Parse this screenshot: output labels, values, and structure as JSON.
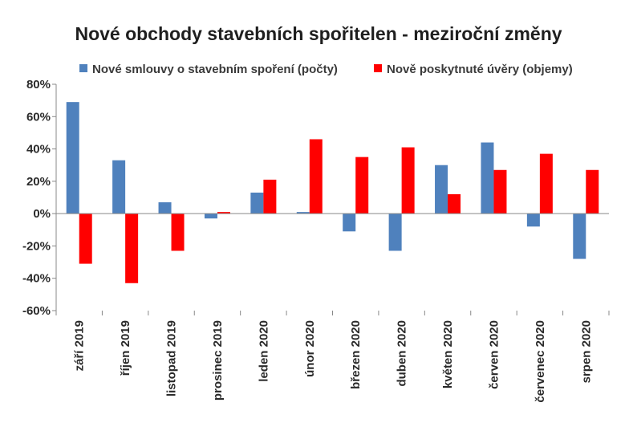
{
  "chart_data": {
    "type": "bar",
    "title": "Nové obchody stavebních spořitelen - meziroční změny",
    "categories": [
      "září 2019",
      "říjen 2019",
      "listopad 2019",
      "prosinec 2019",
      "leden 2020",
      "únor 2020",
      "březen 2020",
      "duben 2020",
      "květen 2020",
      "červen 2020",
      "červenec 2020",
      "srpen 2020"
    ],
    "series": [
      {
        "name": "Nové smlouvy o stavebním spoření (počty)",
        "color": "#4f81bd",
        "values": [
          69,
          33,
          7,
          -3,
          13,
          1,
          -11,
          -23,
          30,
          44,
          -8,
          -28
        ]
      },
      {
        "name": "Nově poskytnuté úvěry (objemy)",
        "color": "#ff0000",
        "values": [
          -31,
          -43,
          -23,
          1,
          21,
          46,
          35,
          41,
          12,
          27,
          37,
          27
        ]
      }
    ],
    "ylim": [
      -60,
      80
    ],
    "yticks": [
      80,
      60,
      40,
      20,
      0,
      -20,
      -40,
      -60
    ],
    "ytick_suffix": "%",
    "grid": false,
    "legend": "top"
  }
}
